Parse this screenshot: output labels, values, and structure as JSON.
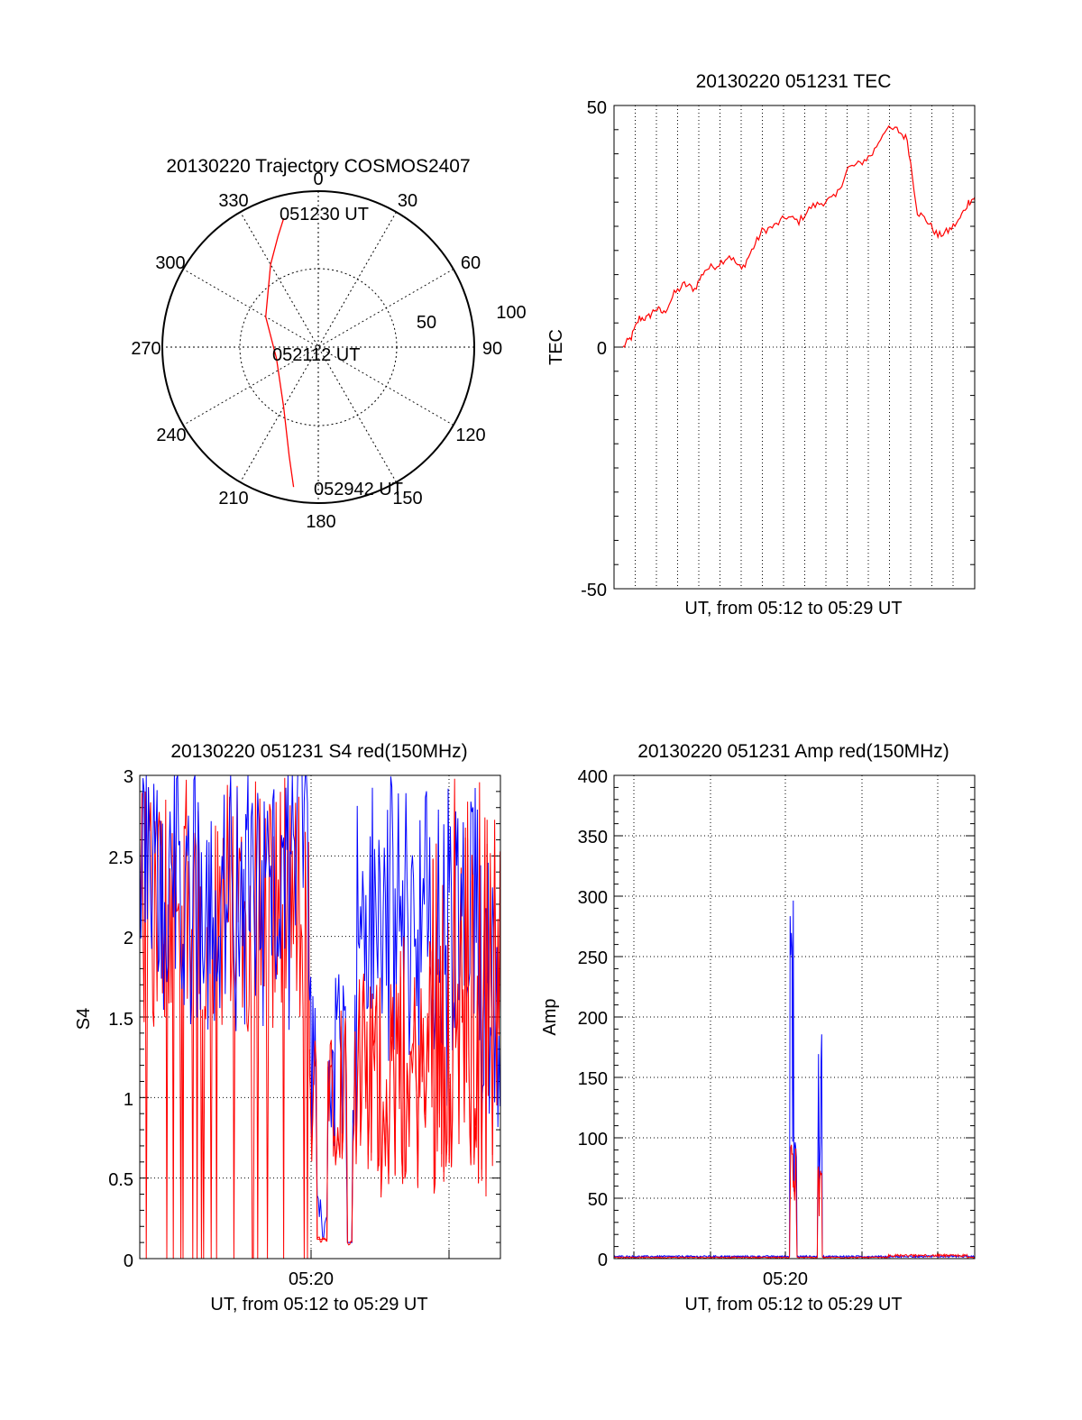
{
  "colors": {
    "red": "#ff0000",
    "blue": "#0000ff",
    "axis": "#000000",
    "grid": "#000000"
  },
  "chart_data": [
    {
      "type": "polar",
      "title": "20130220 Trajectory COSMOS2407",
      "azimuth_labels": [
        "0",
        "30",
        "60",
        "90",
        "120",
        "150",
        "180",
        "210",
        "240",
        "270",
        "300",
        "330"
      ],
      "radius_labels": [
        "50",
        "100"
      ],
      "grid": true,
      "series": [
        {
          "color": "#ff0000",
          "az": [
            345,
            340,
            330,
            300,
            255,
            210,
            195,
            190
          ],
          "el": [
            13,
            22,
            35,
            55,
            65,
            50,
            25,
            8
          ]
        }
      ],
      "annotations": {
        "start_time": "051230 UT",
        "mid_time": "052112 UT",
        "end_time": "052942 UT"
      }
    },
    {
      "type": "line",
      "title": "20130220 051231 TEC",
      "xlabel": "UT, from 05:12 to 05:29 UT",
      "ylabel": "TEC",
      "xlim": [
        0,
        17.2
      ],
      "ylim": [
        -50,
        50
      ],
      "yticks": [
        "50",
        "0",
        "-50"
      ],
      "grid": true,
      "series": [
        {
          "color": "#ff0000",
          "x": [
            0,
            0.4,
            0.8,
            1.2,
            1.6,
            2.0,
            2.5,
            3.0,
            3.5,
            4.0,
            4.6,
            5.2,
            5.8,
            6.3,
            6.8,
            7.4,
            8.0,
            8.6,
            9.2,
            9.8,
            10.4,
            11.0,
            11.6,
            12.2,
            12.8,
            13.4,
            13.9,
            14.4,
            14.9,
            15.4,
            15.9,
            16.4,
            16.9,
            17.2
          ],
          "y": [
            0,
            2,
            6,
            6,
            8,
            7,
            11,
            13,
            12,
            16,
            17,
            19,
            16,
            20,
            24,
            25,
            27,
            26,
            29,
            30,
            31,
            37,
            38,
            40,
            45,
            45,
            43,
            28,
            26,
            23,
            24,
            26,
            30,
            31
          ]
        }
      ]
    },
    {
      "type": "line",
      "title": "20130220 051231 S4 red(150MHz)",
      "xlabel": "UT, from 05:12 to 05:29 UT",
      "ylabel": "S4",
      "xtick_label": "05:20",
      "xlim": [
        0,
        17.2
      ],
      "ylim": [
        0,
        3
      ],
      "yticks": [
        "3",
        "2.5",
        "2",
        "1.5",
        "1",
        "0.5",
        "0"
      ],
      "grid": true,
      "series": [
        {
          "color": "#ff0000"
        },
        {
          "color": "#0000ff"
        }
      ]
    },
    {
      "type": "line",
      "title": "20130220 051231 Amp red(150MHz)",
      "xlabel": "UT, from 05:12 to 05:29 UT",
      "ylabel": "Amp",
      "xtick_label": "05:20",
      "xlim": [
        0,
        17.2
      ],
      "ylim": [
        0,
        400
      ],
      "yticks": [
        "400",
        "350",
        "300",
        "250",
        "200",
        "150",
        "100",
        "50",
        "0"
      ],
      "grid": true,
      "series": [
        {
          "color": "#0000ff",
          "peaks": [
            [
              8.5,
              300
            ],
            [
              9.8,
              195
            ]
          ]
        },
        {
          "color": "#ff0000",
          "peaks": [
            [
              8.5,
              105
            ],
            [
              9.8,
              80
            ]
          ]
        }
      ]
    }
  ]
}
